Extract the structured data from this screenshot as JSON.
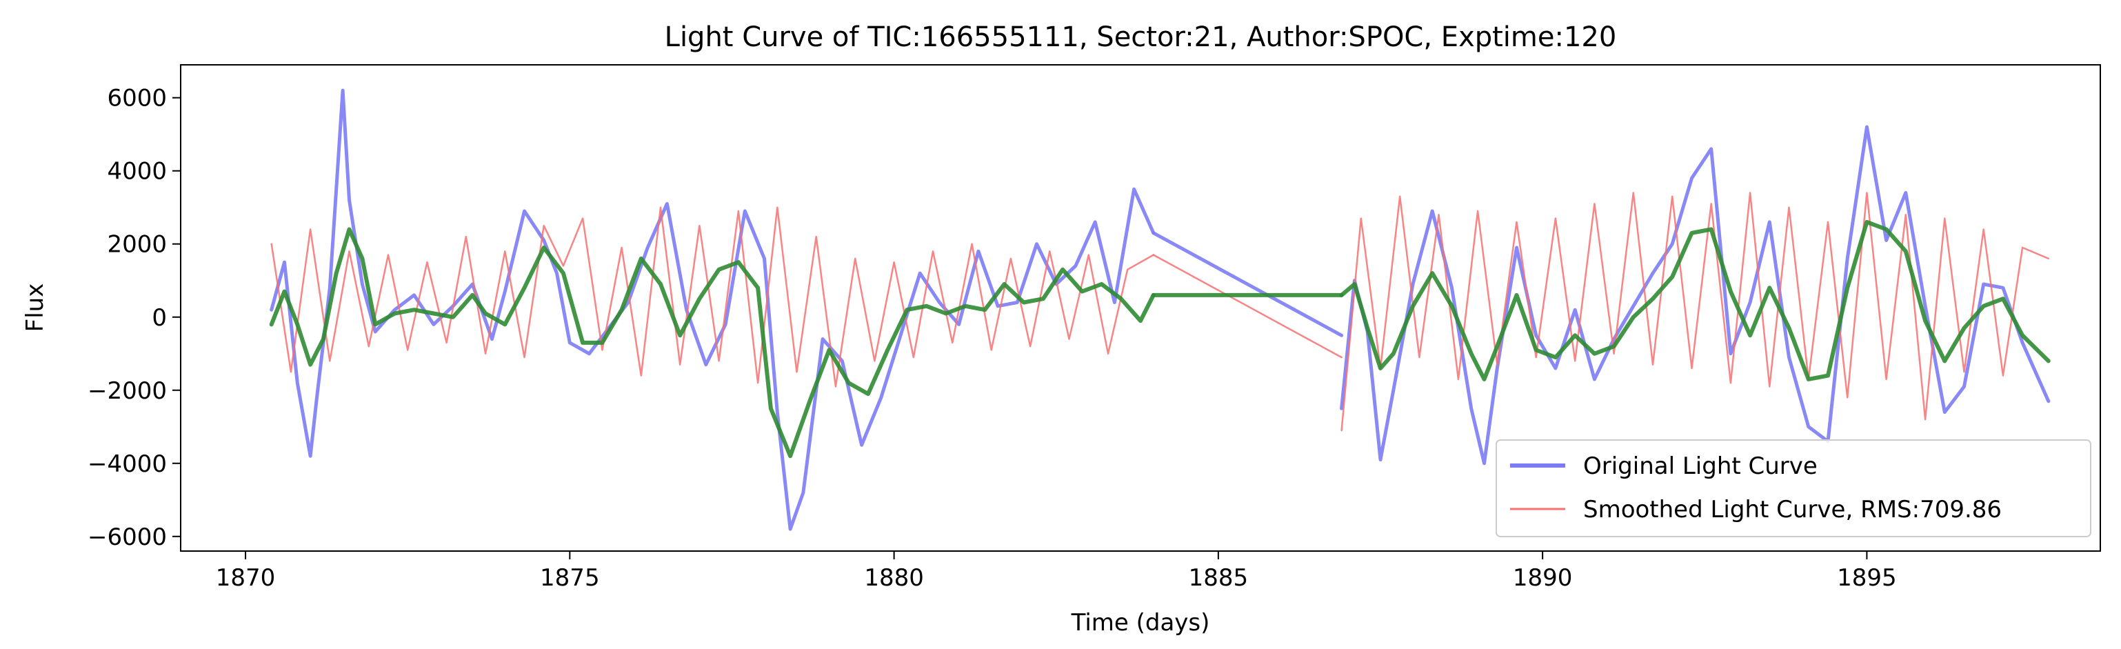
{
  "chart_data": {
    "type": "line",
    "title": "Light Curve of TIC:166555111, Sector:21, Author:SPOC, Exptime:120",
    "xlabel": "Time (days)",
    "ylabel": "Flux",
    "xlim": [
      1869.0,
      1898.6
    ],
    "ylim": [
      -6400,
      6900
    ],
    "xticks": [
      1870,
      1875,
      1880,
      1885,
      1890,
      1895
    ],
    "xtick_labels": [
      "1870",
      "1875",
      "1880",
      "1885",
      "1890",
      "1895"
    ],
    "yticks": [
      -6000,
      -4000,
      -2000,
      0,
      2000,
      4000,
      6000
    ],
    "ytick_labels": [
      "−6000",
      "−4000",
      "−2000",
      "0",
      "2000",
      "4000",
      "6000"
    ],
    "grid": false,
    "legend_position": "lower-right",
    "series": [
      {
        "name": "Original Light Curve",
        "color": "#7b7bf5",
        "segments": [
          {
            "x": [
              1870.4,
              1870.6,
              1870.8,
              1871.0,
              1871.1,
              1871.3,
              1871.5,
              1871.6,
              1871.8,
              1872.0,
              1872.3,
              1872.6,
              1872.9,
              1873.2,
              1873.5,
              1873.8,
              1874.0,
              1874.3,
              1874.6,
              1874.8,
              1875.0,
              1875.3,
              1875.6,
              1875.9,
              1876.2,
              1876.5,
              1876.8,
              1877.1,
              1877.4,
              1877.7,
              1878.0,
              1878.2,
              1878.4,
              1878.6,
              1878.9,
              1879.2,
              1879.5,
              1879.8,
              1880.1,
              1880.4,
              1880.7,
              1881.0,
              1881.3,
              1881.6,
              1881.9,
              1882.2,
              1882.5,
              1882.8,
              1883.1,
              1883.4,
              1883.7,
              1884.0
            ],
            "y": [
              200,
              1500,
              -1800,
              -3800,
              -2200,
              800,
              6200,
              3200,
              900,
              -400,
              200,
              600,
              -200,
              300,
              900,
              -600,
              700,
              2900,
              2100,
              1200,
              -700,
              -1000,
              -300,
              400,
              1900,
              3100,
              200,
              -1300,
              -200,
              2900,
              1600,
              -2600,
              -5800,
              -4800,
              -600,
              -1200,
              -3500,
              -2200,
              -500,
              1200,
              400,
              -200,
              1800,
              300,
              400,
              2000,
              900,
              1400,
              2600,
              400,
              3500,
              2300
            ]
          },
          {
            "x": [
              1884.0,
              1886.9
            ],
            "y": [
              2300,
              -500
            ]
          },
          {
            "x": [
              1886.9,
              1887.1,
              1887.3,
              1887.5,
              1887.7,
              1888.0,
              1888.3,
              1888.6,
              1888.9,
              1889.1,
              1889.3,
              1889.6,
              1889.9,
              1890.2,
              1890.5,
              1890.8,
              1891.1,
              1891.4,
              1891.7,
              1892.0,
              1892.3,
              1892.6,
              1892.9,
              1893.2,
              1893.5,
              1893.8,
              1894.1,
              1894.4,
              1894.7,
              1895.0,
              1895.3,
              1895.6,
              1895.9,
              1896.2,
              1896.5,
              1896.8,
              1897.1,
              1897.4,
              1897.8
            ],
            "y": [
              -2500,
              1000,
              -400,
              -3900,
              -2000,
              900,
              2900,
              800,
              -2500,
              -4000,
              -1400,
              1900,
              -500,
              -1400,
              200,
              -1700,
              -600,
              300,
              1200,
              2000,
              3800,
              4600,
              -1000,
              400,
              2600,
              -1100,
              -3000,
              -3400,
              1600,
              5200,
              2100,
              3400,
              300,
              -2600,
              -1900,
              900,
              800,
              -700,
              -2300
            ]
          }
        ]
      },
      {
        "name": "Smoothed Light Curve, RMS:709.86",
        "color": "#f77070",
        "segments": [
          {
            "x": [
              1870.4,
              1870.7,
              1871.0,
              1871.3,
              1871.6,
              1871.9,
              1872.2,
              1872.5,
              1872.8,
              1873.1,
              1873.4,
              1873.7,
              1874.0,
              1874.3,
              1874.6,
              1874.9,
              1875.2,
              1875.5,
              1875.8,
              1876.1,
              1876.4,
              1876.7,
              1877.0,
              1877.3,
              1877.6,
              1877.9,
              1878.2,
              1878.5,
              1878.8,
              1879.1,
              1879.4,
              1879.7,
              1880.0,
              1880.3,
              1880.6,
              1880.9,
              1881.2,
              1881.5,
              1881.8,
              1882.1,
              1882.4,
              1882.7,
              1883.0,
              1883.3,
              1883.6,
              1884.0
            ],
            "y": [
              2000,
              -1500,
              2400,
              -1200,
              1800,
              -800,
              1700,
              -900,
              1500,
              -700,
              2200,
              -1000,
              1800,
              -1100,
              2500,
              1400,
              2700,
              -900,
              1900,
              -1600,
              3000,
              -1300,
              2500,
              -1200,
              2900,
              -1800,
              3000,
              -1500,
              2200,
              -1900,
              1600,
              -1200,
              1500,
              -1100,
              1800,
              -700,
              2000,
              -900,
              1600,
              -800,
              1800,
              -600,
              1700,
              -1000,
              1300,
              1700
            ]
          },
          {
            "x": [
              1884.0,
              1886.9
            ],
            "y": [
              1700,
              -1100
            ]
          },
          {
            "x": [
              1886.9,
              1887.2,
              1887.5,
              1887.8,
              1888.1,
              1888.4,
              1888.7,
              1889.0,
              1889.3,
              1889.6,
              1889.9,
              1890.2,
              1890.5,
              1890.8,
              1891.1,
              1891.4,
              1891.7,
              1892.0,
              1892.3,
              1892.6,
              1892.9,
              1893.2,
              1893.5,
              1893.8,
              1894.1,
              1894.4,
              1894.7,
              1895.0,
              1895.3,
              1895.6,
              1895.9,
              1896.2,
              1896.5,
              1896.8,
              1897.1,
              1897.4,
              1897.8
            ],
            "y": [
              -3100,
              2700,
              -1400,
              3300,
              -1100,
              2800,
              -1700,
              2900,
              -1300,
              2600,
              -1100,
              2700,
              -1200,
              3100,
              -1000,
              3400,
              -1300,
              3300,
              -1400,
              3100,
              -1800,
              3400,
              -1900,
              3000,
              -1700,
              2600,
              -2200,
              3400,
              -1700,
              2800,
              -2800,
              2700,
              -1500,
              2400,
              -1600,
              1900,
              1600
            ]
          }
        ]
      },
      {
        "name": "",
        "color": "#2e8b32",
        "segments": [
          {
            "x": [
              1870.4,
              1870.6,
              1870.8,
              1871.0,
              1871.2,
              1871.4,
              1871.6,
              1871.8,
              1872.0,
              1872.3,
              1872.6,
              1872.9,
              1873.2,
              1873.5,
              1873.7,
              1874.0,
              1874.3,
              1874.6,
              1874.9,
              1875.2,
              1875.5,
              1875.8,
              1876.1,
              1876.4,
              1876.7,
              1877.0,
              1877.3,
              1877.6,
              1877.9,
              1878.1,
              1878.4,
              1878.7,
              1879.0,
              1879.3,
              1879.6,
              1879.9,
              1880.2,
              1880.5,
              1880.8,
              1881.1,
              1881.4,
              1881.7,
              1882.0,
              1882.3,
              1882.6,
              1882.9,
              1883.2,
              1883.5,
              1883.8,
              1884.0
            ],
            "y": [
              -200,
              700,
              -200,
              -1300,
              -600,
              1200,
              2400,
              1600,
              -200,
              100,
              200,
              100,
              0,
              600,
              100,
              -200,
              800,
              1900,
              1200,
              -700,
              -700,
              200,
              1600,
              900,
              -500,
              500,
              1300,
              1500,
              800,
              -2500,
              -3800,
              -2300,
              -900,
              -1800,
              -2100,
              -900,
              200,
              300,
              100,
              300,
              200,
              900,
              400,
              500,
              1300,
              700,
              900,
              500,
              -100,
              600
            ]
          },
          {
            "x": [
              1884.0,
              1886.9
            ],
            "y": [
              600,
              600
            ]
          },
          {
            "x": [
              1886.9,
              1887.1,
              1887.3,
              1887.5,
              1887.7,
              1888.0,
              1888.3,
              1888.6,
              1888.9,
              1889.1,
              1889.3,
              1889.6,
              1889.9,
              1890.2,
              1890.5,
              1890.8,
              1891.1,
              1891.4,
              1891.7,
              1892.0,
              1892.3,
              1892.6,
              1892.9,
              1893.2,
              1893.5,
              1893.8,
              1894.1,
              1894.4,
              1894.7,
              1895.0,
              1895.3,
              1895.6,
              1895.9,
              1896.2,
              1896.5,
              1896.8,
              1897.1,
              1897.4,
              1897.8
            ],
            "y": [
              600,
              900,
              -300,
              -1400,
              -1000,
              300,
              1200,
              300,
              -1000,
              -1700,
              -800,
              600,
              -900,
              -1100,
              -500,
              -1000,
              -800,
              0,
              500,
              1100,
              2300,
              2400,
              700,
              -500,
              800,
              -300,
              -1700,
              -1600,
              800,
              2600,
              2400,
              1800,
              -100,
              -1200,
              -300,
              300,
              500,
              -500,
              -1200
            ]
          }
        ]
      }
    ]
  }
}
